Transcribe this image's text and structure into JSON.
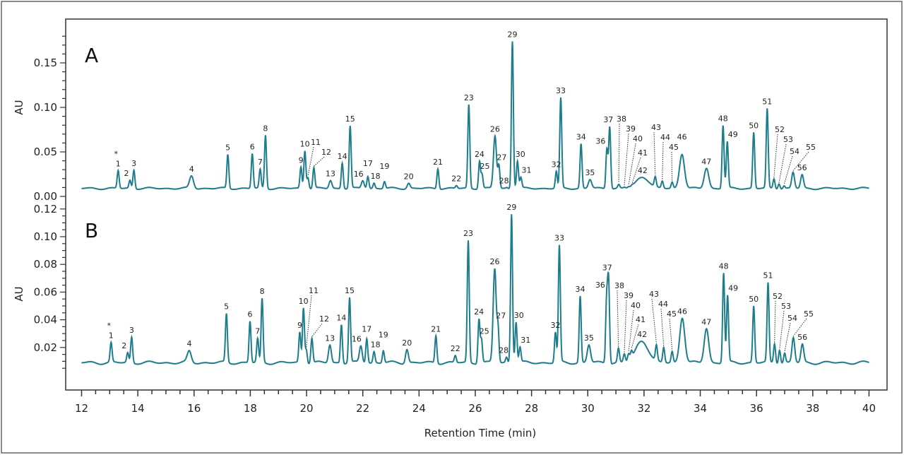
{
  "figure": {
    "xlabel": "Retention Time  (min)",
    "trace_color": "#1e7d8c"
  },
  "chart_data": [
    {
      "type": "line",
      "panel_label": "A",
      "ylabel": "AU",
      "xlim": [
        12,
        40
      ],
      "ylim": [
        0,
        0.18
      ],
      "x_ticks": [
        "12",
        "14",
        "16",
        "18",
        "20",
        "22",
        "24",
        "26",
        "28",
        "30",
        "32",
        "34",
        "36",
        "38",
        "40"
      ],
      "y_ticks": [
        "0.00",
        "0.05",
        "0.10",
        "0.15"
      ],
      "baseline": 0.009,
      "peaks": [
        {
          "label": "1",
          "rt": 13.3,
          "au": 0.029,
          "annotation": "*"
        },
        {
          "label": "2",
          "rt": 13.72,
          "au": 0.018
        },
        {
          "label": "3",
          "rt": 13.86,
          "au": 0.03
        },
        {
          "label": "4",
          "rt": 15.91,
          "au": 0.023
        },
        {
          "label": "5",
          "rt": 17.2,
          "au": 0.047
        },
        {
          "label": "6",
          "rt": 18.07,
          "au": 0.048
        },
        {
          "label": "7",
          "rt": 18.35,
          "au": 0.03
        },
        {
          "label": "8",
          "rt": 18.54,
          "au": 0.069
        },
        {
          "label": "9",
          "rt": 19.8,
          "au": 0.033
        },
        {
          "label": "10",
          "rt": 19.94,
          "au": 0.052
        },
        {
          "label": "11",
          "rt": 20.05,
          "au": 0.022
        },
        {
          "label": "12",
          "rt": 20.26,
          "au": 0.032
        },
        {
          "label": "13",
          "rt": 20.85,
          "au": 0.018
        },
        {
          "label": "14",
          "rt": 21.27,
          "au": 0.038
        },
        {
          "label": "15",
          "rt": 21.55,
          "au": 0.079
        },
        {
          "label": "16",
          "rt": 22.0,
          "au": 0.018
        },
        {
          "label": "17",
          "rt": 22.18,
          "au": 0.023
        },
        {
          "label": "18",
          "rt": 22.4,
          "au": 0.015
        },
        {
          "label": "19",
          "rt": 22.77,
          "au": 0.017
        },
        {
          "label": "20",
          "rt": 23.63,
          "au": 0.015
        },
        {
          "label": "21",
          "rt": 24.67,
          "au": 0.032
        },
        {
          "label": "22",
          "rt": 25.33,
          "au": 0.012
        },
        {
          "label": "23",
          "rt": 25.77,
          "au": 0.103
        },
        {
          "label": "24",
          "rt": 26.15,
          "au": 0.04
        },
        {
          "label": "25",
          "rt": 26.24,
          "au": 0.025
        },
        {
          "label": "26",
          "rt": 26.7,
          "au": 0.068
        },
        {
          "label": "27",
          "rt": 26.84,
          "au": 0.034
        },
        {
          "label": "28",
          "rt": 27.12,
          "au": 0.01
        },
        {
          "label": "29",
          "rt": 27.32,
          "au": 0.175
        },
        {
          "label": "30",
          "rt": 27.5,
          "au": 0.04
        },
        {
          "label": "31",
          "rt": 27.62,
          "au": 0.021
        },
        {
          "label": "32",
          "rt": 28.88,
          "au": 0.028
        },
        {
          "label": "33",
          "rt": 29.04,
          "au": 0.11
        },
        {
          "label": "34",
          "rt": 29.76,
          "au": 0.059
        },
        {
          "label": "35",
          "rt": 30.08,
          "au": 0.019
        },
        {
          "label": "36",
          "rt": 30.68,
          "au": 0.054
        },
        {
          "label": "37",
          "rt": 30.78,
          "au": 0.079
        },
        {
          "label": "38",
          "rt": 31.1,
          "au": 0.013
        },
        {
          "label": "39",
          "rt": 31.3,
          "au": 0.01
        },
        {
          "label": "40",
          "rt": 31.45,
          "au": 0.01
        },
        {
          "label": "41",
          "rt": 31.58,
          "au": 0.01
        },
        {
          "label": "42",
          "rt": 31.95,
          "au": 0.022
        },
        {
          "label": "43",
          "rt": 32.4,
          "au": 0.02
        },
        {
          "label": "44",
          "rt": 32.65,
          "au": 0.017
        },
        {
          "label": "45",
          "rt": 33.0,
          "au": 0.016
        },
        {
          "label": "46",
          "rt": 33.35,
          "au": 0.048
        },
        {
          "label": "47",
          "rt": 34.22,
          "au": 0.032
        },
        {
          "label": "48",
          "rt": 34.81,
          "au": 0.08
        },
        {
          "label": "49",
          "rt": 34.96,
          "au": 0.061
        },
        {
          "label": "50",
          "rt": 35.9,
          "au": 0.072
        },
        {
          "label": "51",
          "rt": 36.38,
          "au": 0.098
        },
        {
          "label": "52",
          "rt": 36.62,
          "au": 0.02
        },
        {
          "label": "53",
          "rt": 36.8,
          "au": 0.015
        },
        {
          "label": "54",
          "rt": 36.98,
          "au": 0.012
        },
        {
          "label": "55",
          "rt": 37.3,
          "au": 0.027
        },
        {
          "label": "56",
          "rt": 37.62,
          "au": 0.024
        }
      ]
    },
    {
      "type": "line",
      "panel_label": "B",
      "ylabel": "AU",
      "xlim": [
        12,
        40
      ],
      "ylim": [
        0,
        0.12
      ],
      "x_ticks": [
        "12",
        "14",
        "16",
        "18",
        "20",
        "22",
        "24",
        "26",
        "28",
        "30",
        "32",
        "34",
        "36",
        "38",
        "40"
      ],
      "y_ticks": [
        "0.02",
        "0.04",
        "0.06",
        "0.08",
        "0.10",
        "0.12"
      ],
      "baseline": 0.009,
      "peaks": [
        {
          "label": "1",
          "rt": 13.05,
          "au": 0.023,
          "annotation": "*"
        },
        {
          "label": "2",
          "rt": 13.64,
          "au": 0.016
        },
        {
          "label": "3",
          "rt": 13.78,
          "au": 0.0275
        },
        {
          "label": "4",
          "rt": 15.83,
          "au": 0.017
        },
        {
          "label": "5",
          "rt": 17.15,
          "au": 0.044
        },
        {
          "label": "6",
          "rt": 17.99,
          "au": 0.039
        },
        {
          "label": "7",
          "rt": 18.26,
          "au": 0.026
        },
        {
          "label": "8",
          "rt": 18.42,
          "au": 0.055
        },
        {
          "label": "9",
          "rt": 19.76,
          "au": 0.031
        },
        {
          "label": "10",
          "rt": 19.89,
          "au": 0.049
        },
        {
          "label": "11",
          "rt": 19.99,
          "au": 0.019
        },
        {
          "label": "12",
          "rt": 20.19,
          "au": 0.027
        },
        {
          "label": "13",
          "rt": 20.83,
          "au": 0.022
        },
        {
          "label": "14",
          "rt": 21.24,
          "au": 0.037
        },
        {
          "label": "15",
          "rt": 21.53,
          "au": 0.056
        },
        {
          "label": "16",
          "rt": 21.93,
          "au": 0.021
        },
        {
          "label": "17",
          "rt": 22.14,
          "au": 0.027
        },
        {
          "label": "18",
          "rt": 22.4,
          "au": 0.017
        },
        {
          "label": "19",
          "rt": 22.73,
          "au": 0.018
        },
        {
          "label": "20",
          "rt": 23.57,
          "au": 0.019
        },
        {
          "label": "21",
          "rt": 24.6,
          "au": 0.029
        },
        {
          "label": "22",
          "rt": 25.29,
          "au": 0.014
        },
        {
          "label": "23",
          "rt": 25.75,
          "au": 0.097
        },
        {
          "label": "24",
          "rt": 26.13,
          "au": 0.041
        },
        {
          "label": "25",
          "rt": 26.22,
          "au": 0.026
        },
        {
          "label": "26",
          "rt": 26.69,
          "au": 0.077
        },
        {
          "label": "27",
          "rt": 26.81,
          "au": 0.032
        },
        {
          "label": "28",
          "rt": 27.11,
          "au": 0.013
        },
        {
          "label": "29",
          "rt": 27.29,
          "au": 0.117
        },
        {
          "label": "30",
          "rt": 27.45,
          "au": 0.039
        },
        {
          "label": "31",
          "rt": 27.59,
          "au": 0.02
        },
        {
          "label": "32",
          "rt": 28.85,
          "au": 0.031
        },
        {
          "label": "33",
          "rt": 28.99,
          "au": 0.093
        },
        {
          "label": "34",
          "rt": 29.73,
          "au": 0.057
        },
        {
          "label": "35",
          "rt": 30.04,
          "au": 0.022
        },
        {
          "label": "36",
          "rt": 30.67,
          "au": 0.053
        },
        {
          "label": "37",
          "rt": 30.74,
          "au": 0.068
        },
        {
          "label": "38",
          "rt": 31.09,
          "au": 0.019
        },
        {
          "label": "39",
          "rt": 31.3,
          "au": 0.015
        },
        {
          "label": "40",
          "rt": 31.45,
          "au": 0.014
        },
        {
          "label": "41",
          "rt": 31.55,
          "au": 0.014
        },
        {
          "label": "42",
          "rt": 31.93,
          "au": 0.025
        },
        {
          "label": "43",
          "rt": 32.44,
          "au": 0.02
        },
        {
          "label": "44",
          "rt": 32.7,
          "au": 0.02
        },
        {
          "label": "45",
          "rt": 33.0,
          "au": 0.017
        },
        {
          "label": "46",
          "rt": 33.36,
          "au": 0.042
        },
        {
          "label": "47",
          "rt": 34.22,
          "au": 0.034
        },
        {
          "label": "48",
          "rt": 34.83,
          "au": 0.074
        },
        {
          "label": "49",
          "rt": 34.97,
          "au": 0.057
        },
        {
          "label": "50",
          "rt": 35.9,
          "au": 0.05
        },
        {
          "label": "51",
          "rt": 36.41,
          "au": 0.066
        },
        {
          "label": "52",
          "rt": 36.64,
          "au": 0.023
        },
        {
          "label": "53",
          "rt": 36.82,
          "au": 0.019
        },
        {
          "label": "54",
          "rt": 37.0,
          "au": 0.016
        },
        {
          "label": "55",
          "rt": 37.31,
          "au": 0.027
        },
        {
          "label": "56",
          "rt": 37.63,
          "au": 0.022
        }
      ]
    }
  ]
}
